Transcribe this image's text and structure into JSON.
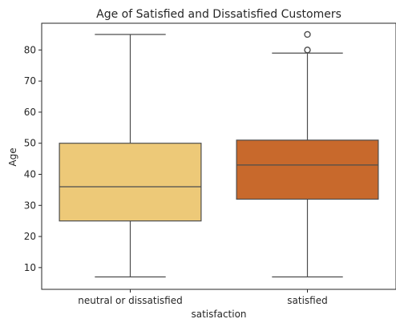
{
  "chart_data": {
    "type": "boxplot",
    "title": "Age of Satisfied and Dissatisfied Customers",
    "xlabel": "satisfaction",
    "ylabel": "Age",
    "categories": [
      "neutral or dissatisfied",
      "satisfied"
    ],
    "ylim": [
      3,
      88.6
    ],
    "yticks": [
      10,
      20,
      30,
      40,
      50,
      60,
      70,
      80
    ],
    "grid": false,
    "boxes": [
      {
        "category": "neutral or dissatisfied",
        "whisker_low": 7,
        "q1": 25,
        "median": 36,
        "q3": 50,
        "whisker_high": 85,
        "outliers": [],
        "color": "#edc978"
      },
      {
        "category": "satisfied",
        "whisker_low": 7,
        "q1": 32,
        "median": 43,
        "q3": 51,
        "whisker_high": 79,
        "outliers": [
          80,
          85
        ],
        "color": "#c8692c"
      }
    ],
    "line_color": "#4d4d4d"
  }
}
